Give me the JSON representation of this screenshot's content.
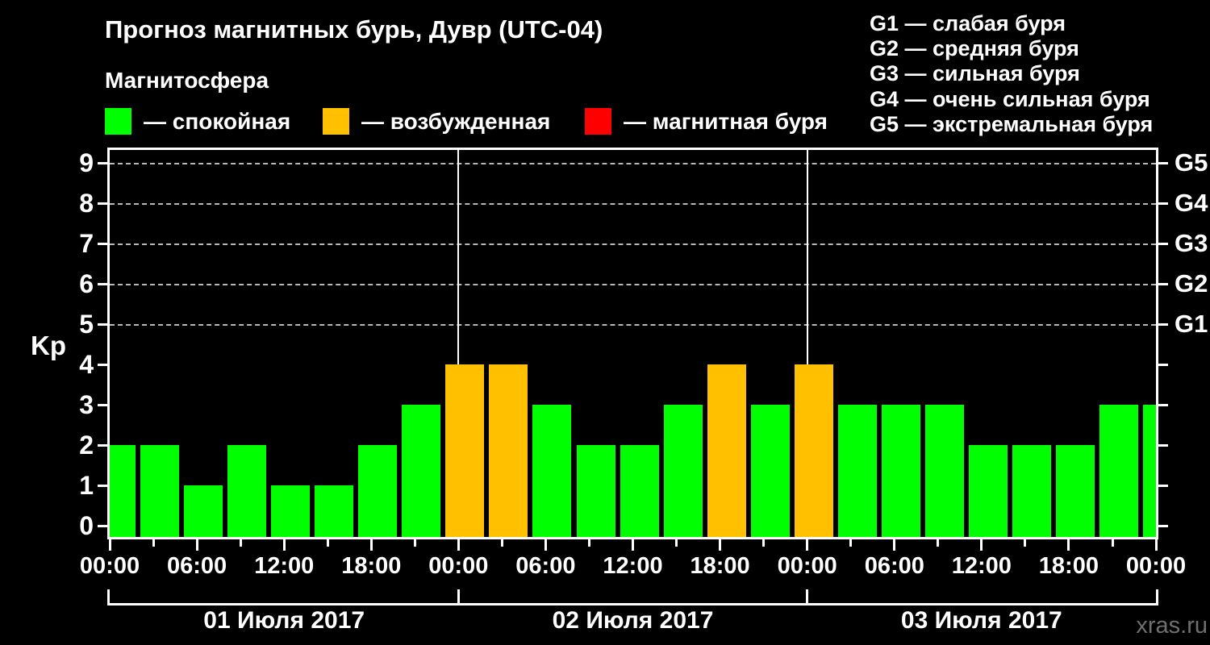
{
  "header": {
    "title": "Прогноз магнитных бурь, Дувр (UTC-04)",
    "subtitle": "Магнитосфера"
  },
  "legend": {
    "items": [
      {
        "name": "quiet",
        "label": "— спокойная",
        "color": "#00ff00"
      },
      {
        "name": "excited",
        "label": "— возбужденная",
        "color": "#ffc000"
      },
      {
        "name": "storm",
        "label": "— магнитная буря",
        "color": "#ff0000"
      }
    ]
  },
  "g_legend": {
    "items": [
      "G1 — слабая буря",
      "G2 — средняя буря",
      "G3 — сильная буря",
      "G4 — очень сильная буря",
      "G5 — экстремальная буря"
    ]
  },
  "watermark": "xras.ru",
  "chart_data": {
    "type": "bar",
    "title": "Прогноз магнитных бурь, Дувр (UTC-04)",
    "ylabel": "Kp",
    "ylim": [
      0,
      9
    ],
    "y_ticks": [
      0,
      1,
      2,
      3,
      4,
      5,
      6,
      7,
      8,
      9
    ],
    "grid_dashed_at_kp": [
      5,
      6,
      7,
      8,
      9
    ],
    "x_start_hour": 0,
    "x_end_hour": 72,
    "x_hours": [
      0,
      3,
      6,
      9,
      12,
      15,
      18,
      21,
      24,
      27,
      30,
      33,
      36,
      39,
      42,
      45,
      48,
      51,
      54,
      57,
      60,
      63,
      66,
      69,
      72
    ],
    "values": [
      2,
      2,
      1,
      2,
      1,
      1,
      2,
      3,
      4,
      4,
      3,
      2,
      2,
      3,
      4,
      3,
      4,
      3,
      3,
      3,
      2,
      2,
      2,
      3,
      3
    ],
    "x_tick_labels": [
      "00:00",
      "06:00",
      "12:00",
      "18:00",
      "00:00",
      "06:00",
      "12:00",
      "18:00",
      "00:00",
      "06:00",
      "12:00",
      "18:00",
      "00:00"
    ],
    "x_label_step_hours": 6,
    "minor_tick_step_hours": 3,
    "day_boundary_hours": [
      24,
      48
    ],
    "day_labels": [
      "01 Июля 2017",
      "02 Июля 2017",
      "03 Июля 2017"
    ],
    "right_axis": [
      {
        "label": "G1",
        "kp": 5
      },
      {
        "label": "G2",
        "kp": 6
      },
      {
        "label": "G3",
        "kp": 7
      },
      {
        "label": "G4",
        "kp": 8
      },
      {
        "label": "G5",
        "kp": 9
      }
    ],
    "color_rule": {
      "green_max_kp": 3,
      "orange_max_kp": 4
    },
    "colors": {
      "quiet": "#00ff00",
      "excited": "#ffc000",
      "storm": "#ff0000"
    },
    "legend_position": "top-left",
    "grid": "dashed horizontal at Kp 5-9 only"
  }
}
